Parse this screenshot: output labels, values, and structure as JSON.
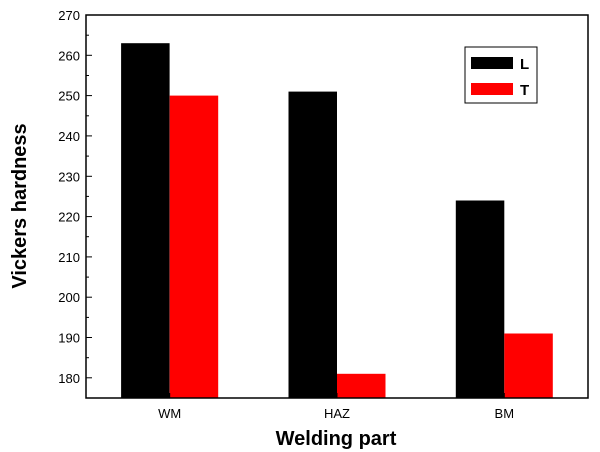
{
  "chart_data": {
    "type": "bar",
    "categories": [
      "WM",
      "HAZ",
      "BM"
    ],
    "series": [
      {
        "name": "L",
        "color": "#000000",
        "values": [
          263,
          251,
          224
        ]
      },
      {
        "name": "T",
        "color": "#ff0000",
        "values": [
          250,
          181,
          191
        ]
      }
    ],
    "xlabel": "Welding part",
    "ylabel": "Vickers hardness",
    "ylim": [
      175,
      270
    ],
    "yticks": [
      180,
      190,
      200,
      210,
      220,
      230,
      240,
      250,
      260,
      270
    ],
    "legend_position": "top-right",
    "grid": false
  }
}
